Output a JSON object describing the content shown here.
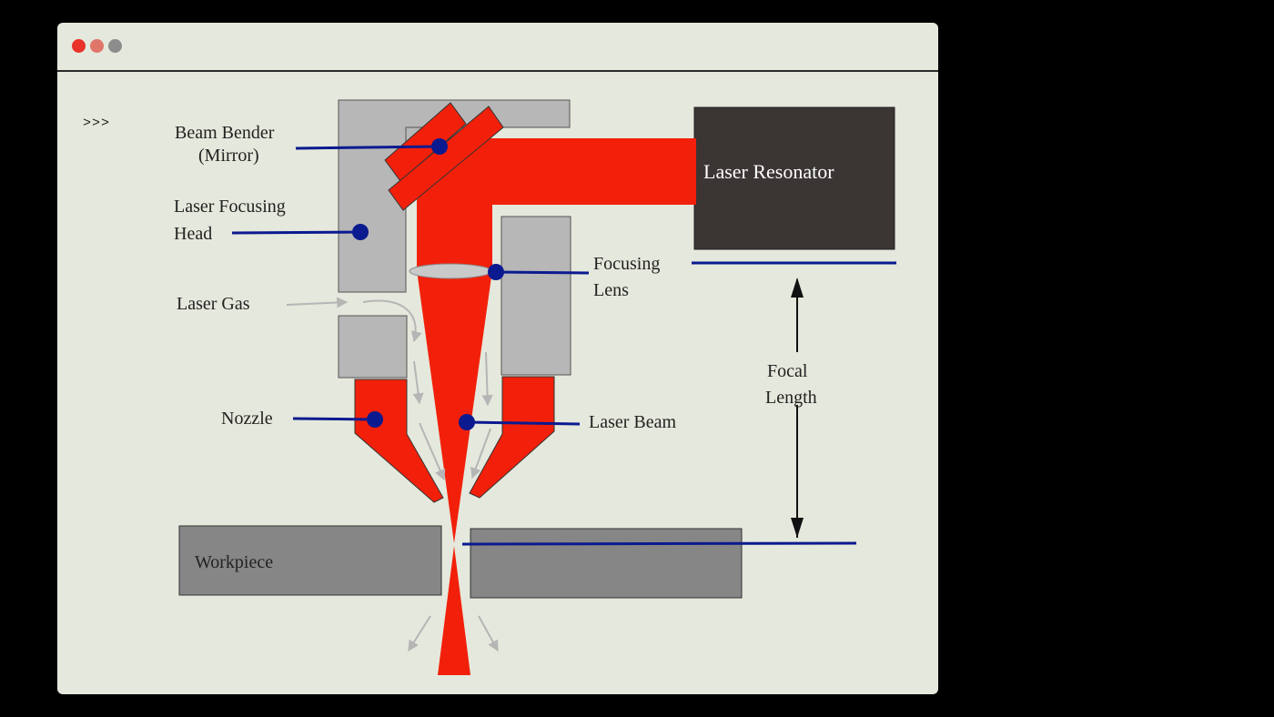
{
  "window": {
    "prompt": ">>>",
    "controls": [
      "close",
      "minimize",
      "maximize"
    ]
  },
  "diagram": {
    "labels": {
      "beam_bender_line1": "Beam Bender",
      "beam_bender_line2": "(Mirror)",
      "focusing_head_line1": "Laser Focusing",
      "focusing_head_line2": "Head",
      "laser_gas": "Laser Gas",
      "nozzle": "Nozzle",
      "focusing_lens_line1": "Focusing",
      "focusing_lens_line2": "Lens",
      "laser_beam": "Laser Beam",
      "laser_resonator": "Laser Resonator",
      "focal_length_line1": "Focal",
      "focal_length_line2": "Length",
      "workpiece": "Workpiece"
    },
    "colors": {
      "laser": "#f2200a",
      "housing": "#b7b7b7",
      "resonator": "#3b3534",
      "workpiece": "#868686",
      "pointer": "#0b1a8f",
      "gas_flow": "#b5b5b5"
    }
  }
}
